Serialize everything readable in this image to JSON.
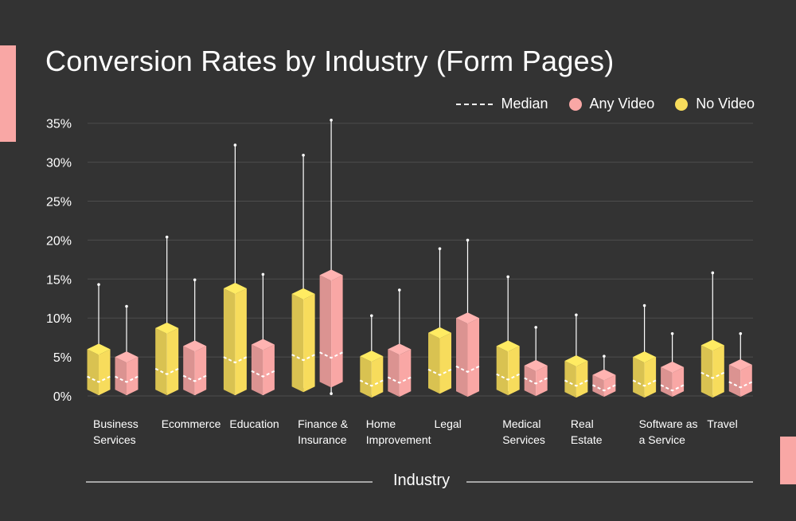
{
  "title": "Conversion Rates by Industry (Form Pages)",
  "legend": {
    "median": "Median",
    "any_video": "Any Video",
    "no_video": "No Video"
  },
  "colors": {
    "background": "#333333",
    "any_video": "#f9a7a5",
    "no_video": "#f7dc5c",
    "accent": "#f9a7a5"
  },
  "chart_data": {
    "type": "box",
    "title": "Conversion Rates by Industry (Form Pages)",
    "xlabel": "Industry",
    "ylabel": "",
    "ylim": [
      0,
      35
    ],
    "yticks": [
      "0%",
      "5%",
      "10%",
      "15%",
      "20%",
      "25%",
      "30%",
      "35%"
    ],
    "grid": true,
    "legend_position": "top-right",
    "categories": [
      "Business Services",
      "Ecommerce",
      "Education",
      "Finance & Insurance",
      "Home Improvement",
      "Legal",
      "Medical Services",
      "Real Estate",
      "Software as a Service",
      "Travel"
    ],
    "category_label_lines": [
      [
        "Business",
        "Services"
      ],
      [
        "Ecommerce"
      ],
      [
        "Education"
      ],
      [
        "Finance &",
        "Insurance"
      ],
      [
        "Home",
        "Improvement"
      ],
      [
        "Legal"
      ],
      [
        "Medical",
        "Services"
      ],
      [
        "Real",
        "Estate"
      ],
      [
        "Software as",
        "a Service"
      ],
      [
        "Travel"
      ]
    ],
    "series": [
      {
        "name": "No Video",
        "color": "#f7dc5c",
        "min": [
          0.3,
          0.6,
          0.3,
          1.2,
          0.3,
          0.8,
          0.8,
          0.3,
          0.3,
          0.3
        ],
        "q1": [
          0.8,
          0.8,
          0.8,
          1.2,
          0.5,
          1.0,
          0.8,
          0.5,
          0.5,
          0.5
        ],
        "median": [
          2.5,
          3.5,
          5.0,
          5.3,
          2.0,
          3.4,
          2.8,
          2.0,
          2.0,
          3.0
        ],
        "q3": [
          6.0,
          8.7,
          13.8,
          13.1,
          5.1,
          8.1,
          6.4,
          4.5,
          5.0,
          6.5
        ],
        "max": [
          14.3,
          20.4,
          32.2,
          30.9,
          10.3,
          18.9,
          15.3,
          10.4,
          11.6,
          15.8
        ]
      },
      {
        "name": "Any Video",
        "color": "#f9a7a5",
        "min": [
          0.3,
          0.3,
          0.3,
          0.3,
          0.3,
          0.3,
          0.3,
          0.3,
          0.3,
          0.3
        ],
        "q1": [
          0.8,
          0.8,
          0.8,
          1.8,
          0.6,
          0.6,
          0.7,
          0.6,
          0.6,
          0.6
        ],
        "median": [
          2.5,
          2.6,
          3.2,
          5.6,
          2.4,
          3.8,
          2.3,
          1.4,
          1.4,
          1.8
        ],
        "q3": [
          5.0,
          6.4,
          6.6,
          15.5,
          6.0,
          10.0,
          3.9,
          2.7,
          3.7,
          4.0
        ],
        "max": [
          11.5,
          14.9,
          15.6,
          35.4,
          13.6,
          20.0,
          8.8,
          5.1,
          8.0,
          8.0
        ]
      }
    ]
  }
}
